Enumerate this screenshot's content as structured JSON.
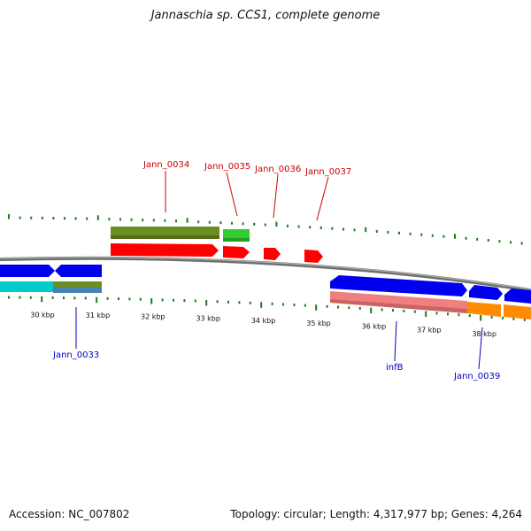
{
  "header": {
    "title": "Jannaschia sp. CCS1, complete genome"
  },
  "footer": {
    "accession": "Accession: NC_007802",
    "stats": "Topology: circular; Length: 4,317,977 bp; Genes: 4,264"
  },
  "colors": {
    "backbone": "#808080",
    "tick": "#1e7a1e",
    "label_red": "#cc0000",
    "label_blue": "#0000bb",
    "blue_cds": "#0000ee",
    "red_cds": "#ff0000",
    "olive_cds": "#6b8e23",
    "green_cds": "#33cc33",
    "cyan_cds": "#00cccc",
    "pink_cds": "#f08080",
    "orange_cds": "#ff8c00",
    "steelblue_cds": "#4682b4"
  },
  "ticks": [
    "30 kbp",
    "31 kbp",
    "32 kbp",
    "33 kbp",
    "34 kbp",
    "35 kbp",
    "36 kbp",
    "37 kbp",
    "38 kbp"
  ],
  "genes": {
    "upper": [
      {
        "label": "Jann_0034"
      },
      {
        "label": "Jann_0035"
      },
      {
        "label": "Jann_0036"
      },
      {
        "label": "Jann_0037"
      }
    ],
    "lower": [
      {
        "label": "Jann_0033"
      },
      {
        "label": "infB"
      },
      {
        "label": "Jann_0039"
      }
    ]
  }
}
